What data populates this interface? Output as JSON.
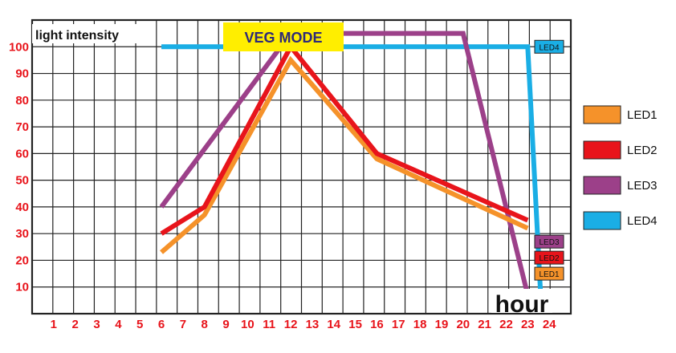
{
  "chart_data": {
    "type": "line",
    "title": "VEG MODE",
    "ylabel": "light intensity",
    "xlabel": "hour",
    "xlim": [
      0,
      25
    ],
    "ylim": [
      0,
      110
    ],
    "x_ticks": [
      1,
      2,
      3,
      4,
      5,
      6,
      7,
      8,
      9,
      10,
      11,
      12,
      13,
      14,
      15,
      16,
      17,
      18,
      19,
      20,
      21,
      22,
      23,
      24
    ],
    "y_ticks": [
      10,
      20,
      30,
      40,
      50,
      60,
      70,
      80,
      90,
      100
    ],
    "grid": true,
    "legend_position": "right",
    "series": [
      {
        "name": "LED1",
        "color": "#f5922a",
        "points": [
          [
            6,
            23
          ],
          [
            8,
            37
          ],
          [
            12,
            95
          ],
          [
            16,
            58
          ],
          [
            23,
            32
          ]
        ]
      },
      {
        "name": "LED2",
        "color": "#e8141b",
        "points": [
          [
            6,
            30
          ],
          [
            8,
            40
          ],
          [
            12,
            100
          ],
          [
            16,
            60
          ],
          [
            23,
            35
          ]
        ]
      },
      {
        "name": "LED3",
        "color": "#9c4089",
        "points": [
          [
            6,
            40
          ],
          [
            12,
            105
          ],
          [
            20,
            105
          ],
          [
            23,
            7
          ]
        ]
      },
      {
        "name": "LED4",
        "color": "#1aaee5",
        "points": [
          [
            6,
            100
          ],
          [
            23,
            100
          ],
          [
            23.6,
            7
          ]
        ]
      }
    ],
    "end_tags": [
      {
        "label": "LED4",
        "color": "#1aaee5",
        "y": 100
      },
      {
        "label": "LED3",
        "color": "#9c4089",
        "y": 27
      },
      {
        "label": "LED2",
        "color": "#e8141b",
        "y": 21
      },
      {
        "label": "LED1",
        "color": "#f5922a",
        "y": 15
      }
    ]
  }
}
